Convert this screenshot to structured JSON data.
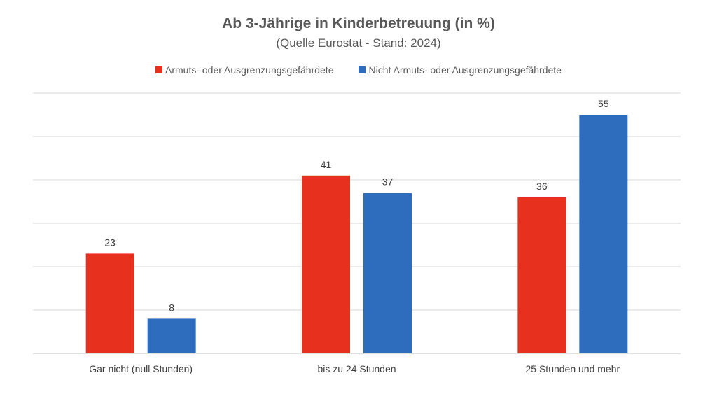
{
  "chart_data": {
    "type": "bar",
    "title": "Ab 3-Jährige in Kinderbetreuung (in %)",
    "subtitle": "(Quelle Eurostat - Stand: 2024)",
    "categories": [
      "Gar nicht (null Stunden)",
      "bis zu 24 Stunden",
      "25 Stunden und mehr"
    ],
    "series": [
      {
        "name": "Armuts- oder Ausgrenzungsgefährdete",
        "values": [
          23,
          41,
          36
        ],
        "color": "#E8301F"
      },
      {
        "name": "Nicht Armuts- oder Ausgrenzungsgefährdete",
        "values": [
          8,
          37,
          55
        ],
        "color": "#2E6DBE"
      }
    ],
    "ylim": [
      0,
      60
    ],
    "grid": true,
    "legend": "top",
    "data_labels": true,
    "y_axis_labels": false
  }
}
